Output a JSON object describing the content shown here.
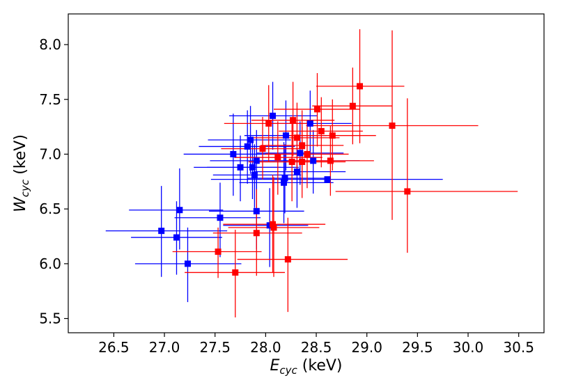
{
  "chart_data": {
    "type": "scatter",
    "title": "",
    "xlabel": {
      "main": "E",
      "sub": "cyc",
      "unit": " (keV)"
    },
    "ylabel": {
      "main": "W",
      "sub": "cyc",
      "unit": " (keV)"
    },
    "xlim": [
      26.05,
      30.75
    ],
    "ylim": [
      5.37,
      8.28
    ],
    "xticks": [
      "26.5",
      "27.0",
      "27.5",
      "28.0",
      "28.5",
      "29.0",
      "29.5",
      "30.0",
      "30.5"
    ],
    "yticks": [
      "5.5",
      "6.0",
      "6.5",
      "7.0",
      "7.5",
      "8.0"
    ],
    "grid": false,
    "series": [
      {
        "color": "#0000ff",
        "points": [
          {
            "x": 26.97,
            "y": 6.3,
            "xlo": 26.42,
            "xhi": 27.62,
            "ylo": 5.88,
            "yhi": 6.71
          },
          {
            "x": 27.12,
            "y": 6.24,
            "xlo": 26.67,
            "xhi": 27.57,
            "ylo": 5.9,
            "yhi": 6.57
          },
          {
            "x": 27.15,
            "y": 6.49,
            "xlo": 26.65,
            "xhi": 27.58,
            "ylo": 6.13,
            "yhi": 6.87
          },
          {
            "x": 27.23,
            "y": 6.0,
            "xlo": 26.71,
            "xhi": 27.76,
            "ylo": 5.65,
            "yhi": 6.33
          },
          {
            "x": 27.55,
            "y": 6.42,
            "xlo": 27.1,
            "xhi": 27.95,
            "ylo": 6.06,
            "yhi": 6.74
          },
          {
            "x": 27.68,
            "y": 7.0,
            "xlo": 27.19,
            "xhi": 28.14,
            "ylo": 6.62,
            "yhi": 7.37
          },
          {
            "x": 27.75,
            "y": 6.88,
            "xlo": 27.29,
            "xhi": 28.15,
            "ylo": 6.57,
            "yhi": 7.17
          },
          {
            "x": 27.82,
            "y": 7.07,
            "xlo": 27.34,
            "xhi": 28.29,
            "ylo": 6.73,
            "yhi": 7.4
          },
          {
            "x": 27.85,
            "y": 7.13,
            "xlo": 27.43,
            "xhi": 28.25,
            "ylo": 6.82,
            "yhi": 7.44
          },
          {
            "x": 27.87,
            "y": 6.88,
            "xlo": 27.42,
            "xhi": 28.33,
            "ylo": 6.59,
            "yhi": 7.15
          },
          {
            "x": 27.89,
            "y": 6.81,
            "xlo": 27.48,
            "xhi": 28.35,
            "ylo": 6.51,
            "yhi": 7.09
          },
          {
            "x": 27.91,
            "y": 6.94,
            "xlo": 27.45,
            "xhi": 28.39,
            "ylo": 6.66,
            "yhi": 7.22
          },
          {
            "x": 27.91,
            "y": 6.48,
            "xlo": 27.44,
            "xhi": 28.38,
            "ylo": 6.13,
            "yhi": 6.81
          },
          {
            "x": 28.04,
            "y": 6.35,
            "xlo": 27.58,
            "xhi": 28.42,
            "ylo": 5.97,
            "yhi": 6.69
          },
          {
            "x": 28.07,
            "y": 7.35,
            "xlo": 27.64,
            "xhi": 28.51,
            "ylo": 7.04,
            "yhi": 7.66
          },
          {
            "x": 28.18,
            "y": 6.74,
            "xlo": 27.74,
            "xhi": 28.67,
            "ylo": 6.37,
            "yhi": 7.11
          },
          {
            "x": 28.19,
            "y": 6.78,
            "xlo": 27.82,
            "xhi": 28.59,
            "ylo": 6.46,
            "yhi": 7.09
          },
          {
            "x": 28.2,
            "y": 7.17,
            "xlo": 27.79,
            "xhi": 28.6,
            "ylo": 6.85,
            "yhi": 7.49
          },
          {
            "x": 28.31,
            "y": 6.84,
            "xlo": 27.88,
            "xhi": 28.79,
            "ylo": 6.51,
            "yhi": 7.15
          },
          {
            "x": 28.34,
            "y": 7.01,
            "xlo": 27.91,
            "xhi": 28.77,
            "ylo": 6.72,
            "yhi": 7.3
          },
          {
            "x": 28.44,
            "y": 7.28,
            "xlo": 28.01,
            "xhi": 28.85,
            "ylo": 6.97,
            "yhi": 7.58
          },
          {
            "x": 28.47,
            "y": 6.94,
            "xlo": 27.98,
            "xhi": 28.93,
            "ylo": 6.64,
            "yhi": 7.22
          },
          {
            "x": 28.61,
            "y": 6.77,
            "xlo": 27.46,
            "xhi": 29.75,
            "ylo": 6.75,
            "yhi": 6.79
          }
        ]
      },
      {
        "color": "#ff0000",
        "points": [
          {
            "x": 27.53,
            "y": 6.11,
            "xlo": 27.08,
            "xhi": 27.96,
            "ylo": 5.87,
            "yhi": 6.33
          },
          {
            "x": 27.7,
            "y": 5.92,
            "xlo": 27.2,
            "xhi": 28.19,
            "ylo": 5.51,
            "yhi": 6.31
          },
          {
            "x": 27.91,
            "y": 6.28,
            "xlo": 27.48,
            "xhi": 28.36,
            "ylo": 5.89,
            "yhi": 6.68
          },
          {
            "x": 27.97,
            "y": 7.05,
            "xlo": 27.56,
            "xhi": 28.39,
            "ylo": 6.77,
            "yhi": 7.34
          },
          {
            "x": 28.03,
            "y": 7.28,
            "xlo": 27.59,
            "xhi": 28.45,
            "ylo": 6.93,
            "yhi": 7.63
          },
          {
            "x": 28.07,
            "y": 6.36,
            "xlo": 27.58,
            "xhi": 28.59,
            "ylo": 5.92,
            "yhi": 6.81
          },
          {
            "x": 28.08,
            "y": 6.33,
            "xlo": 27.63,
            "xhi": 28.53,
            "ylo": 5.88,
            "yhi": 6.79
          },
          {
            "x": 28.12,
            "y": 6.97,
            "xlo": 27.69,
            "xhi": 28.56,
            "ylo": 6.63,
            "yhi": 7.3
          },
          {
            "x": 28.22,
            "y": 6.04,
            "xlo": 27.72,
            "xhi": 28.81,
            "ylo": 5.56,
            "yhi": 6.42
          },
          {
            "x": 28.26,
            "y": 6.93,
            "xlo": 27.83,
            "xhi": 28.68,
            "ylo": 6.57,
            "yhi": 7.28
          },
          {
            "x": 28.27,
            "y": 7.31,
            "xlo": 27.86,
            "xhi": 28.68,
            "ylo": 6.98,
            "yhi": 7.66
          },
          {
            "x": 28.31,
            "y": 7.15,
            "xlo": 27.87,
            "xhi": 28.73,
            "ylo": 6.82,
            "yhi": 7.47
          },
          {
            "x": 28.36,
            "y": 7.08,
            "xlo": 27.95,
            "xhi": 28.77,
            "ylo": 6.75,
            "yhi": 7.4
          },
          {
            "x": 28.36,
            "y": 6.93,
            "xlo": 27.94,
            "xhi": 28.79,
            "ylo": 6.6,
            "yhi": 7.25
          },
          {
            "x": 28.41,
            "y": 7.0,
            "xlo": 27.99,
            "xhi": 28.82,
            "ylo": 6.69,
            "yhi": 7.31
          },
          {
            "x": 28.51,
            "y": 7.41,
            "xlo": 28.08,
            "xhi": 28.93,
            "ylo": 7.07,
            "yhi": 7.74
          },
          {
            "x": 28.55,
            "y": 7.21,
            "xlo": 28.13,
            "xhi": 28.96,
            "ylo": 6.88,
            "yhi": 7.52
          },
          {
            "x": 28.64,
            "y": 6.94,
            "xlo": 28.22,
            "xhi": 29.07,
            "ylo": 6.62,
            "yhi": 7.26
          },
          {
            "x": 28.66,
            "y": 7.17,
            "xlo": 28.24,
            "xhi": 29.09,
            "ylo": 6.85,
            "yhi": 7.5
          },
          {
            "x": 28.86,
            "y": 7.44,
            "xlo": 28.46,
            "xhi": 29.25,
            "ylo": 7.09,
            "yhi": 7.79
          },
          {
            "x": 28.93,
            "y": 7.62,
            "xlo": 28.5,
            "xhi": 29.37,
            "ylo": 7.1,
            "yhi": 8.14
          },
          {
            "x": 29.25,
            "y": 7.26,
            "xlo": 28.4,
            "xhi": 30.1,
            "ylo": 6.4,
            "yhi": 8.13
          },
          {
            "x": 29.4,
            "y": 6.66,
            "xlo": 28.69,
            "xhi": 30.49,
            "ylo": 6.1,
            "yhi": 7.51
          }
        ]
      }
    ]
  }
}
